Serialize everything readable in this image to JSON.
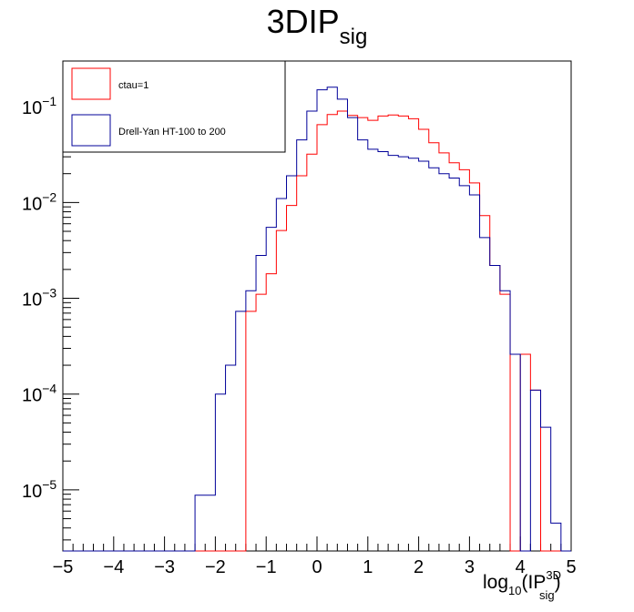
{
  "chart_data": {
    "type": "histogram",
    "title": "3DIP",
    "title_sub": "sig",
    "xlabel_parts": {
      "pre": "log",
      "sub1": "10",
      "mid": "(IP",
      "sup": "3D",
      "sub2": "sig",
      "post": ")"
    },
    "xlim": [
      -5,
      5
    ],
    "ylim": [
      2.3e-06,
      0.3
    ],
    "yscale": "log",
    "x_ticks": [
      -5,
      -4,
      -3,
      -2,
      -1,
      0,
      1,
      2,
      3,
      4,
      5
    ],
    "x_tick_labels": [
      "−5",
      "−4",
      "−3",
      "−2",
      "−1",
      "0",
      "1",
      "2",
      "3",
      "4",
      "5"
    ],
    "y_ticks": [
      {
        "value": 1e-05,
        "base": "10",
        "exp": "−5"
      },
      {
        "value": 0.0001,
        "base": "10",
        "exp": "−4"
      },
      {
        "value": 0.001,
        "base": "10",
        "exp": "−3"
      },
      {
        "value": 0.01,
        "base": "10",
        "exp": "−2"
      },
      {
        "value": 0.1,
        "base": "10",
        "exp": "−1"
      }
    ],
    "bin_edges": [
      -5.0,
      -4.8,
      -4.6,
      -4.4,
      -4.2,
      -4.0,
      -3.8,
      -3.6,
      -3.4,
      -3.2,
      -3.0,
      -2.8,
      -2.6,
      -2.4,
      -2.2,
      -2.0,
      -1.8,
      -1.6,
      -1.4,
      -1.2,
      -1.0,
      -0.8,
      -0.6,
      -0.4,
      -0.2,
      0.0,
      0.2,
      0.4,
      0.6,
      0.8,
      1.0,
      1.2,
      1.4,
      1.6,
      1.8,
      2.0,
      2.2,
      2.4,
      2.6,
      2.8,
      3.0,
      3.2,
      3.4,
      3.6,
      3.8,
      4.0,
      4.2,
      4.4,
      4.6,
      4.8,
      5.0
    ],
    "legend_position": "top-left",
    "series": [
      {
        "name": "ctau=1",
        "color": "#ff0000",
        "values": [
          0,
          0,
          0,
          0,
          0,
          0,
          0,
          0,
          0,
          0,
          0,
          0,
          0,
          0,
          0,
          0,
          0,
          0,
          0.00073,
          0.0011,
          0.0018,
          0.0051,
          0.0093,
          0.019,
          0.032,
          0.065,
          0.083,
          0.09,
          0.081,
          0.077,
          0.072,
          0.08,
          0.082,
          0.08,
          0.075,
          0.058,
          0.042,
          0.033,
          0.026,
          0.022,
          0.016,
          0.0073,
          0.0022,
          0.0011,
          0,
          0.00026,
          0.00011,
          0,
          0,
          0
        ]
      },
      {
        "name": "Drell-Yan HT-100 to 200",
        "color": "#000099",
        "values": [
          0,
          0,
          0,
          0,
          0,
          0,
          0,
          0,
          0,
          0,
          0,
          0,
          0,
          8.8e-06,
          8.8e-06,
          0.0001,
          0.0002,
          0.00073,
          0.0012,
          0.0028,
          0.0055,
          0.011,
          0.019,
          0.045,
          0.09,
          0.15,
          0.16,
          0.12,
          0.077,
          0.045,
          0.036,
          0.034,
          0.031,
          0.03,
          0.029,
          0.027,
          0.023,
          0.02,
          0.018,
          0.015,
          0.012,
          0.0043,
          0.0022,
          0.0012,
          0.00026,
          0.0,
          0.00011,
          4.5e-05,
          4.5e-06,
          0
        ]
      }
    ]
  }
}
